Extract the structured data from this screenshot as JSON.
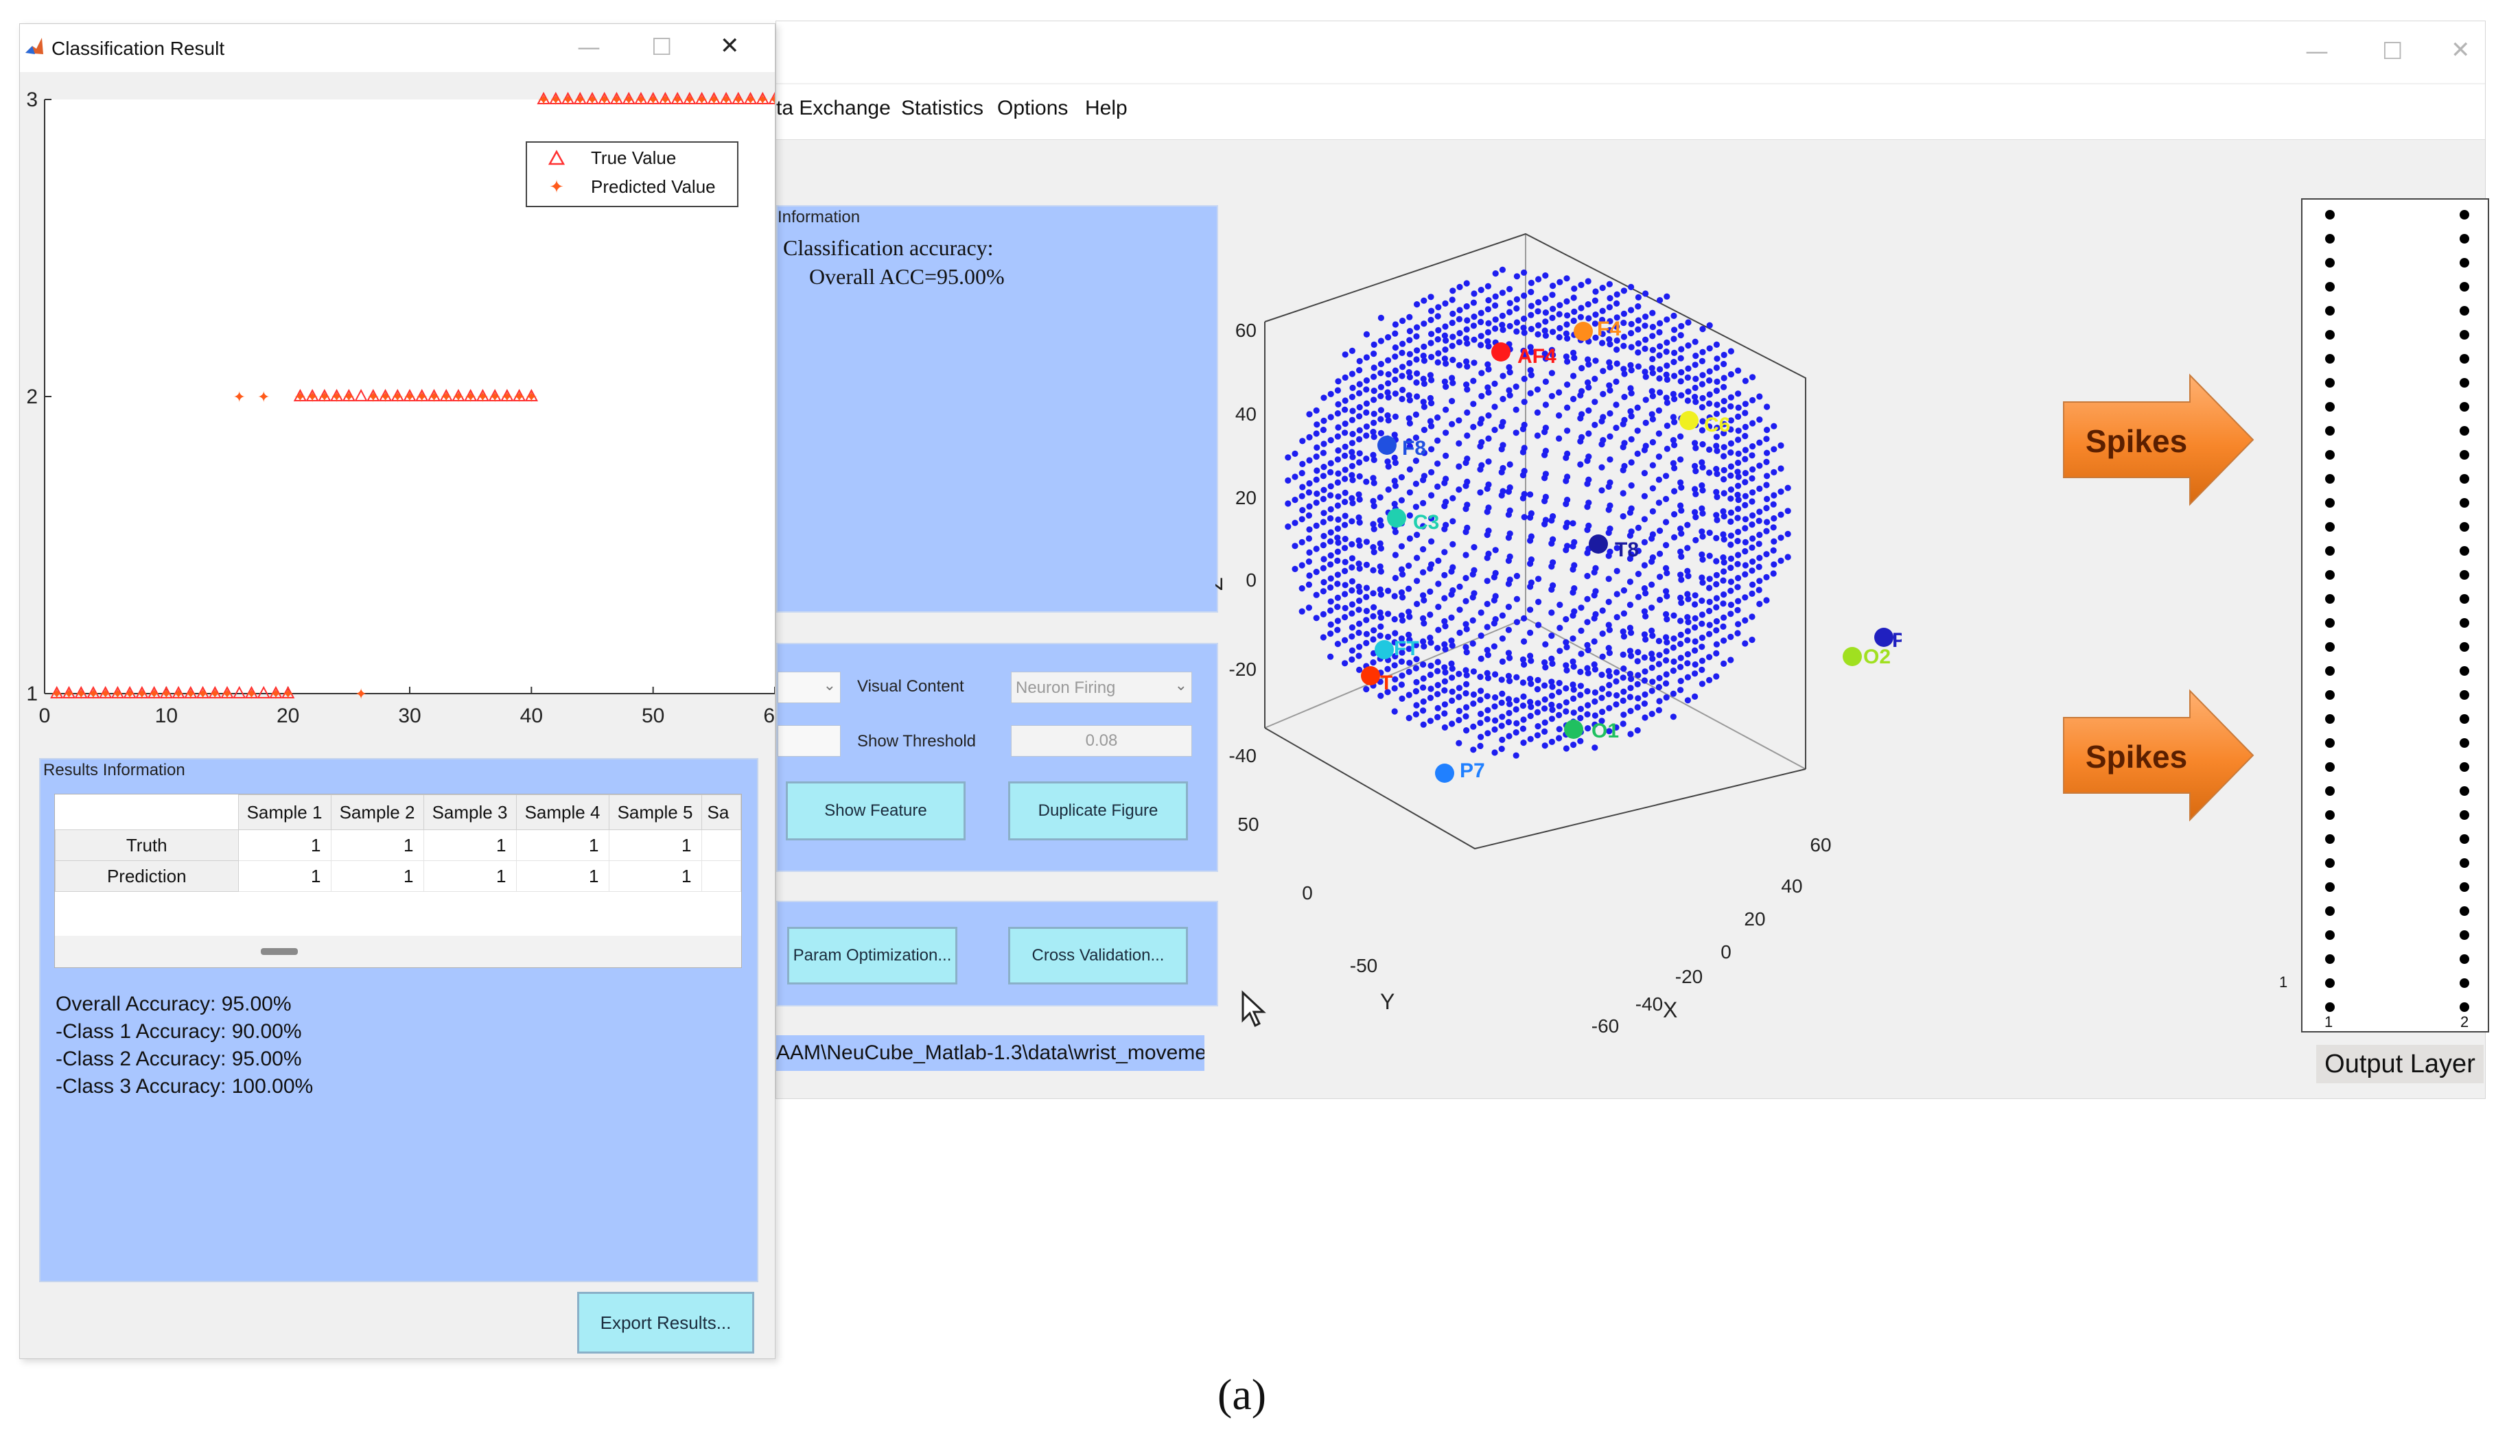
{
  "main_window": {
    "menu": [
      "ta Exchange",
      "Statistics",
      "Options",
      "Help"
    ],
    "info_panel": {
      "title": "Information",
      "line1": "Classification accuracy:",
      "line2": "Overall ACC=95.00%"
    },
    "visual_panel": {
      "visual_content_label": "Visual Content",
      "visual_content_value": "Neuron Firing",
      "show_threshold_label": "Show Threshold",
      "show_threshold_value": "0.08",
      "show_feature_button": "Show Feature",
      "duplicate_figure_button": "Duplicate Figure"
    },
    "tools_panel": {
      "param_optimization_button": "Param Optimization...",
      "cross_validation_button": "Cross Validation..."
    },
    "path_text": "AAM\\NeuCube_Matlab-1.3\\data\\wrist_moveme",
    "cube_plot": {
      "z_label": "Z",
      "x_label": "X",
      "y_label": "Y",
      "z_ticks": [
        "60",
        "40",
        "20",
        "0",
        "-20",
        "-40"
      ],
      "x_ticks": [
        "60",
        "40",
        "20",
        "0",
        "-20",
        "-40",
        "-60"
      ],
      "y_ticks": [
        "50",
        "0",
        "-50"
      ],
      "electrodes": [
        {
          "label": "AF4",
          "color": "#ff1a1a"
        },
        {
          "label": "F4",
          "color": "#ff8c1a"
        },
        {
          "label": "C6",
          "color": "#f0f020"
        },
        {
          "label": "F8",
          "color": "#2050e0"
        },
        {
          "label": "C3",
          "color": "#20d0b0"
        },
        {
          "label": "P8",
          "color": "#2020c0"
        },
        {
          "label": "T",
          "color": "#ff3300"
        },
        {
          "label": "FT",
          "color": "#20c8e0"
        },
        {
          "label": "T8",
          "color": "#1a1aa0"
        },
        {
          "label": "O2",
          "color": "#a0e020"
        },
        {
          "label": "O1",
          "color": "#20c060"
        },
        {
          "label": "P7",
          "color": "#2080ff"
        }
      ]
    },
    "spikes": [
      "Spikes",
      "Spikes"
    ],
    "output_layer": {
      "label": "Output Layer",
      "y_tick": "1",
      "x_ticks": [
        "1",
        "2"
      ]
    }
  },
  "classification_window": {
    "title": "Classification Result",
    "chart_data": {
      "type": "scatter",
      "title": "",
      "xlim": [
        0,
        60
      ],
      "ylim": [
        1,
        3
      ],
      "x_ticks": [
        "0",
        "10",
        "20",
        "30",
        "40",
        "50",
        "60"
      ],
      "y_ticks": [
        "1",
        "2",
        "3"
      ],
      "legend": [
        "True Value",
        "Predicted Value"
      ],
      "legend_position": "top-right",
      "series": [
        {
          "name": "True Value",
          "color": "#ff3030",
          "marker": "triangle",
          "points": [
            [
              1,
              1
            ],
            [
              2,
              1
            ],
            [
              3,
              1
            ],
            [
              4,
              1
            ],
            [
              5,
              1
            ],
            [
              6,
              1
            ],
            [
              7,
              1
            ],
            [
              8,
              1
            ],
            [
              9,
              1
            ],
            [
              10,
              1
            ],
            [
              11,
              1
            ],
            [
              12,
              1
            ],
            [
              13,
              1
            ],
            [
              14,
              1
            ],
            [
              15,
              1
            ],
            [
              16,
              1
            ],
            [
              17,
              1
            ],
            [
              18,
              1
            ],
            [
              19,
              1
            ],
            [
              20,
              1
            ],
            [
              21,
              2
            ],
            [
              22,
              2
            ],
            [
              23,
              2
            ],
            [
              24,
              2
            ],
            [
              25,
              2
            ],
            [
              26,
              2
            ],
            [
              27,
              2
            ],
            [
              28,
              2
            ],
            [
              29,
              2
            ],
            [
              30,
              2
            ],
            [
              31,
              2
            ],
            [
              32,
              2
            ],
            [
              33,
              2
            ],
            [
              34,
              2
            ],
            [
              35,
              2
            ],
            [
              36,
              2
            ],
            [
              37,
              2
            ],
            [
              38,
              2
            ],
            [
              39,
              2
            ],
            [
              40,
              2
            ],
            [
              41,
              3
            ],
            [
              42,
              3
            ],
            [
              43,
              3
            ],
            [
              44,
              3
            ],
            [
              45,
              3
            ],
            [
              46,
              3
            ],
            [
              47,
              3
            ],
            [
              48,
              3
            ],
            [
              49,
              3
            ],
            [
              50,
              3
            ],
            [
              51,
              3
            ],
            [
              52,
              3
            ],
            [
              53,
              3
            ],
            [
              54,
              3
            ],
            [
              55,
              3
            ],
            [
              56,
              3
            ],
            [
              57,
              3
            ],
            [
              58,
              3
            ],
            [
              59,
              3
            ],
            [
              60,
              3
            ]
          ]
        },
        {
          "name": "Predicted Value",
          "color": "#ff5a1a",
          "marker": "star",
          "points": [
            [
              1,
              1
            ],
            [
              2,
              1
            ],
            [
              3,
              1
            ],
            [
              4,
              1
            ],
            [
              5,
              1
            ],
            [
              6,
              1
            ],
            [
              7,
              1
            ],
            [
              8,
              1
            ],
            [
              9,
              1
            ],
            [
              10,
              1
            ],
            [
              11,
              1
            ],
            [
              12,
              1
            ],
            [
              13,
              1
            ],
            [
              14,
              1
            ],
            [
              15,
              1
            ],
            [
              16,
              2
            ],
            [
              17,
              1
            ],
            [
              18,
              2
            ],
            [
              19,
              1
            ],
            [
              20,
              1
            ],
            [
              21,
              2
            ],
            [
              22,
              2
            ],
            [
              23,
              2
            ],
            [
              24,
              2
            ],
            [
              25,
              2
            ],
            [
              26,
              1
            ],
            [
              27,
              2
            ],
            [
              28,
              2
            ],
            [
              29,
              2
            ],
            [
              30,
              2
            ],
            [
              31,
              2
            ],
            [
              32,
              2
            ],
            [
              33,
              2
            ],
            [
              34,
              2
            ],
            [
              35,
              2
            ],
            [
              36,
              2
            ],
            [
              37,
              2
            ],
            [
              38,
              2
            ],
            [
              39,
              2
            ],
            [
              40,
              2
            ],
            [
              41,
              3
            ],
            [
              42,
              3
            ],
            [
              43,
              3
            ],
            [
              44,
              3
            ],
            [
              45,
              3
            ],
            [
              46,
              3
            ],
            [
              47,
              3
            ],
            [
              48,
              3
            ],
            [
              49,
              3
            ],
            [
              50,
              3
            ],
            [
              51,
              3
            ],
            [
              52,
              3
            ],
            [
              53,
              3
            ],
            [
              54,
              3
            ],
            [
              55,
              3
            ],
            [
              56,
              3
            ],
            [
              57,
              3
            ],
            [
              58,
              3
            ],
            [
              59,
              3
            ],
            [
              60,
              3
            ]
          ]
        }
      ]
    },
    "results": {
      "title": "Results Information",
      "columns": [
        "Sample 1",
        "Sample 2",
        "Sample 3",
        "Sample 4",
        "Sample 5",
        "Sa"
      ],
      "rows": [
        {
          "label": "Truth",
          "values": [
            "1",
            "1",
            "1",
            "1",
            "1"
          ]
        },
        {
          "label": "Prediction",
          "values": [
            "1",
            "1",
            "1",
            "1",
            "1"
          ]
        }
      ],
      "overall": "Overall Accuracy: 95.00%",
      "class1": "-Class 1 Accuracy: 90.00%",
      "class2": "-Class 2 Accuracy: 95.00%",
      "class3": "-Class 3 Accuracy: 100.00%",
      "export_button": "Export Results..."
    }
  },
  "caption": "(a)"
}
